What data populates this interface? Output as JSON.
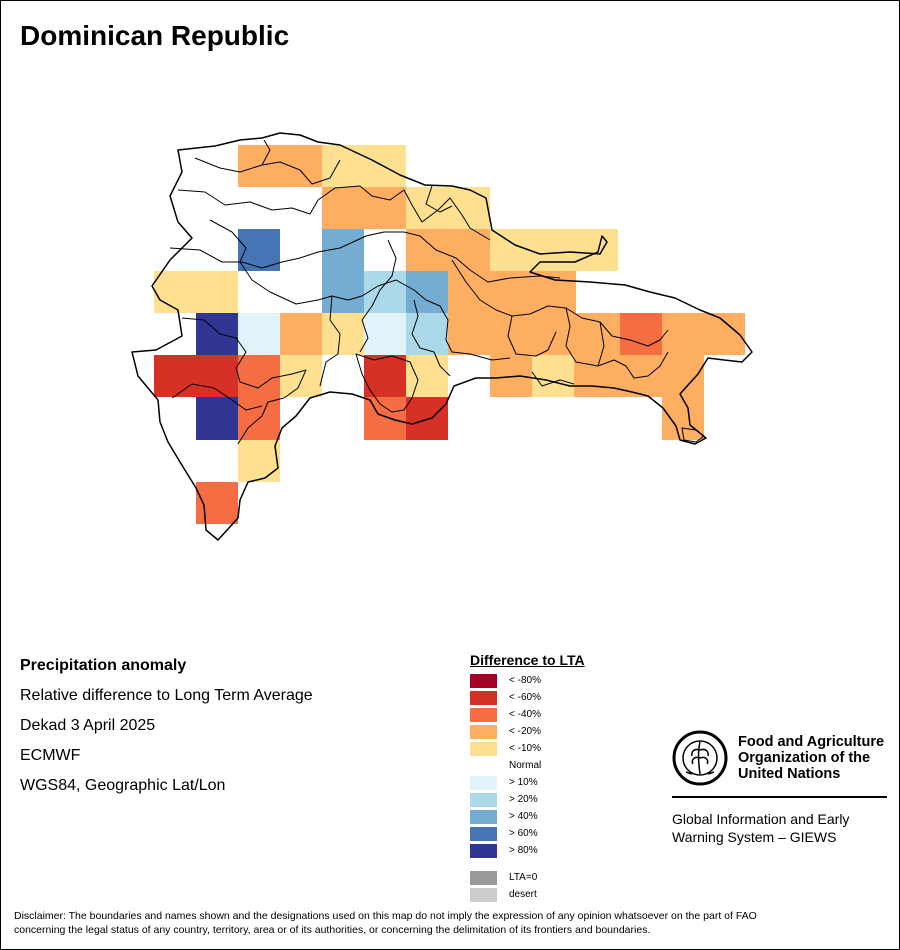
{
  "title": "Dominican Republic",
  "info": {
    "heading": "Precipitation anomaly",
    "line1": "Relative difference to Long Term Average",
    "line2": "Dekad 3 April 2025",
    "line3": "ECMWF",
    "line4": "WGS84, Geographic Lat/Lon"
  },
  "legend": {
    "title": "Difference to LTA",
    "classes": [
      {
        "label": "< -80%",
        "color": "#a50026"
      },
      {
        "label": "< -60%",
        "color": "#d73027"
      },
      {
        "label": "< -40%",
        "color": "#f46d43"
      },
      {
        "label": "< -20%",
        "color": "#fdae61"
      },
      {
        "label": "< -10%",
        "color": "#fee090"
      },
      {
        "label": "Normal",
        "color": "#ffffff"
      },
      {
        "label": "> 10%",
        "color": "#e0f3f8"
      },
      {
        "label": "> 20%",
        "color": "#abd9e9"
      },
      {
        "label": "> 40%",
        "color": "#74add1"
      },
      {
        "label": "> 60%",
        "color": "#4575b4"
      },
      {
        "label": "> 80%",
        "color": "#313695"
      }
    ],
    "extra": [
      {
        "label": "LTA=0",
        "color": "#999999"
      },
      {
        "label": "desert",
        "color": "#cccccc"
      }
    ]
  },
  "fao": {
    "line1": "Food and Agriculture",
    "line2": "Organization of the",
    "line3": "United Nations",
    "giews1": "Global Information and Early",
    "giews2": "Warning System – GIEWS"
  },
  "disclaimer1": "Disclaimer: The boundaries and names shown and the designations used on this map do not imply the expression of any opinion whatsoever on the part of FAO",
  "disclaimer2": "concerning the legal status of any country, territory, area or of its authorities, or concerning the delimitation of its frontiers and boundaries."
}
